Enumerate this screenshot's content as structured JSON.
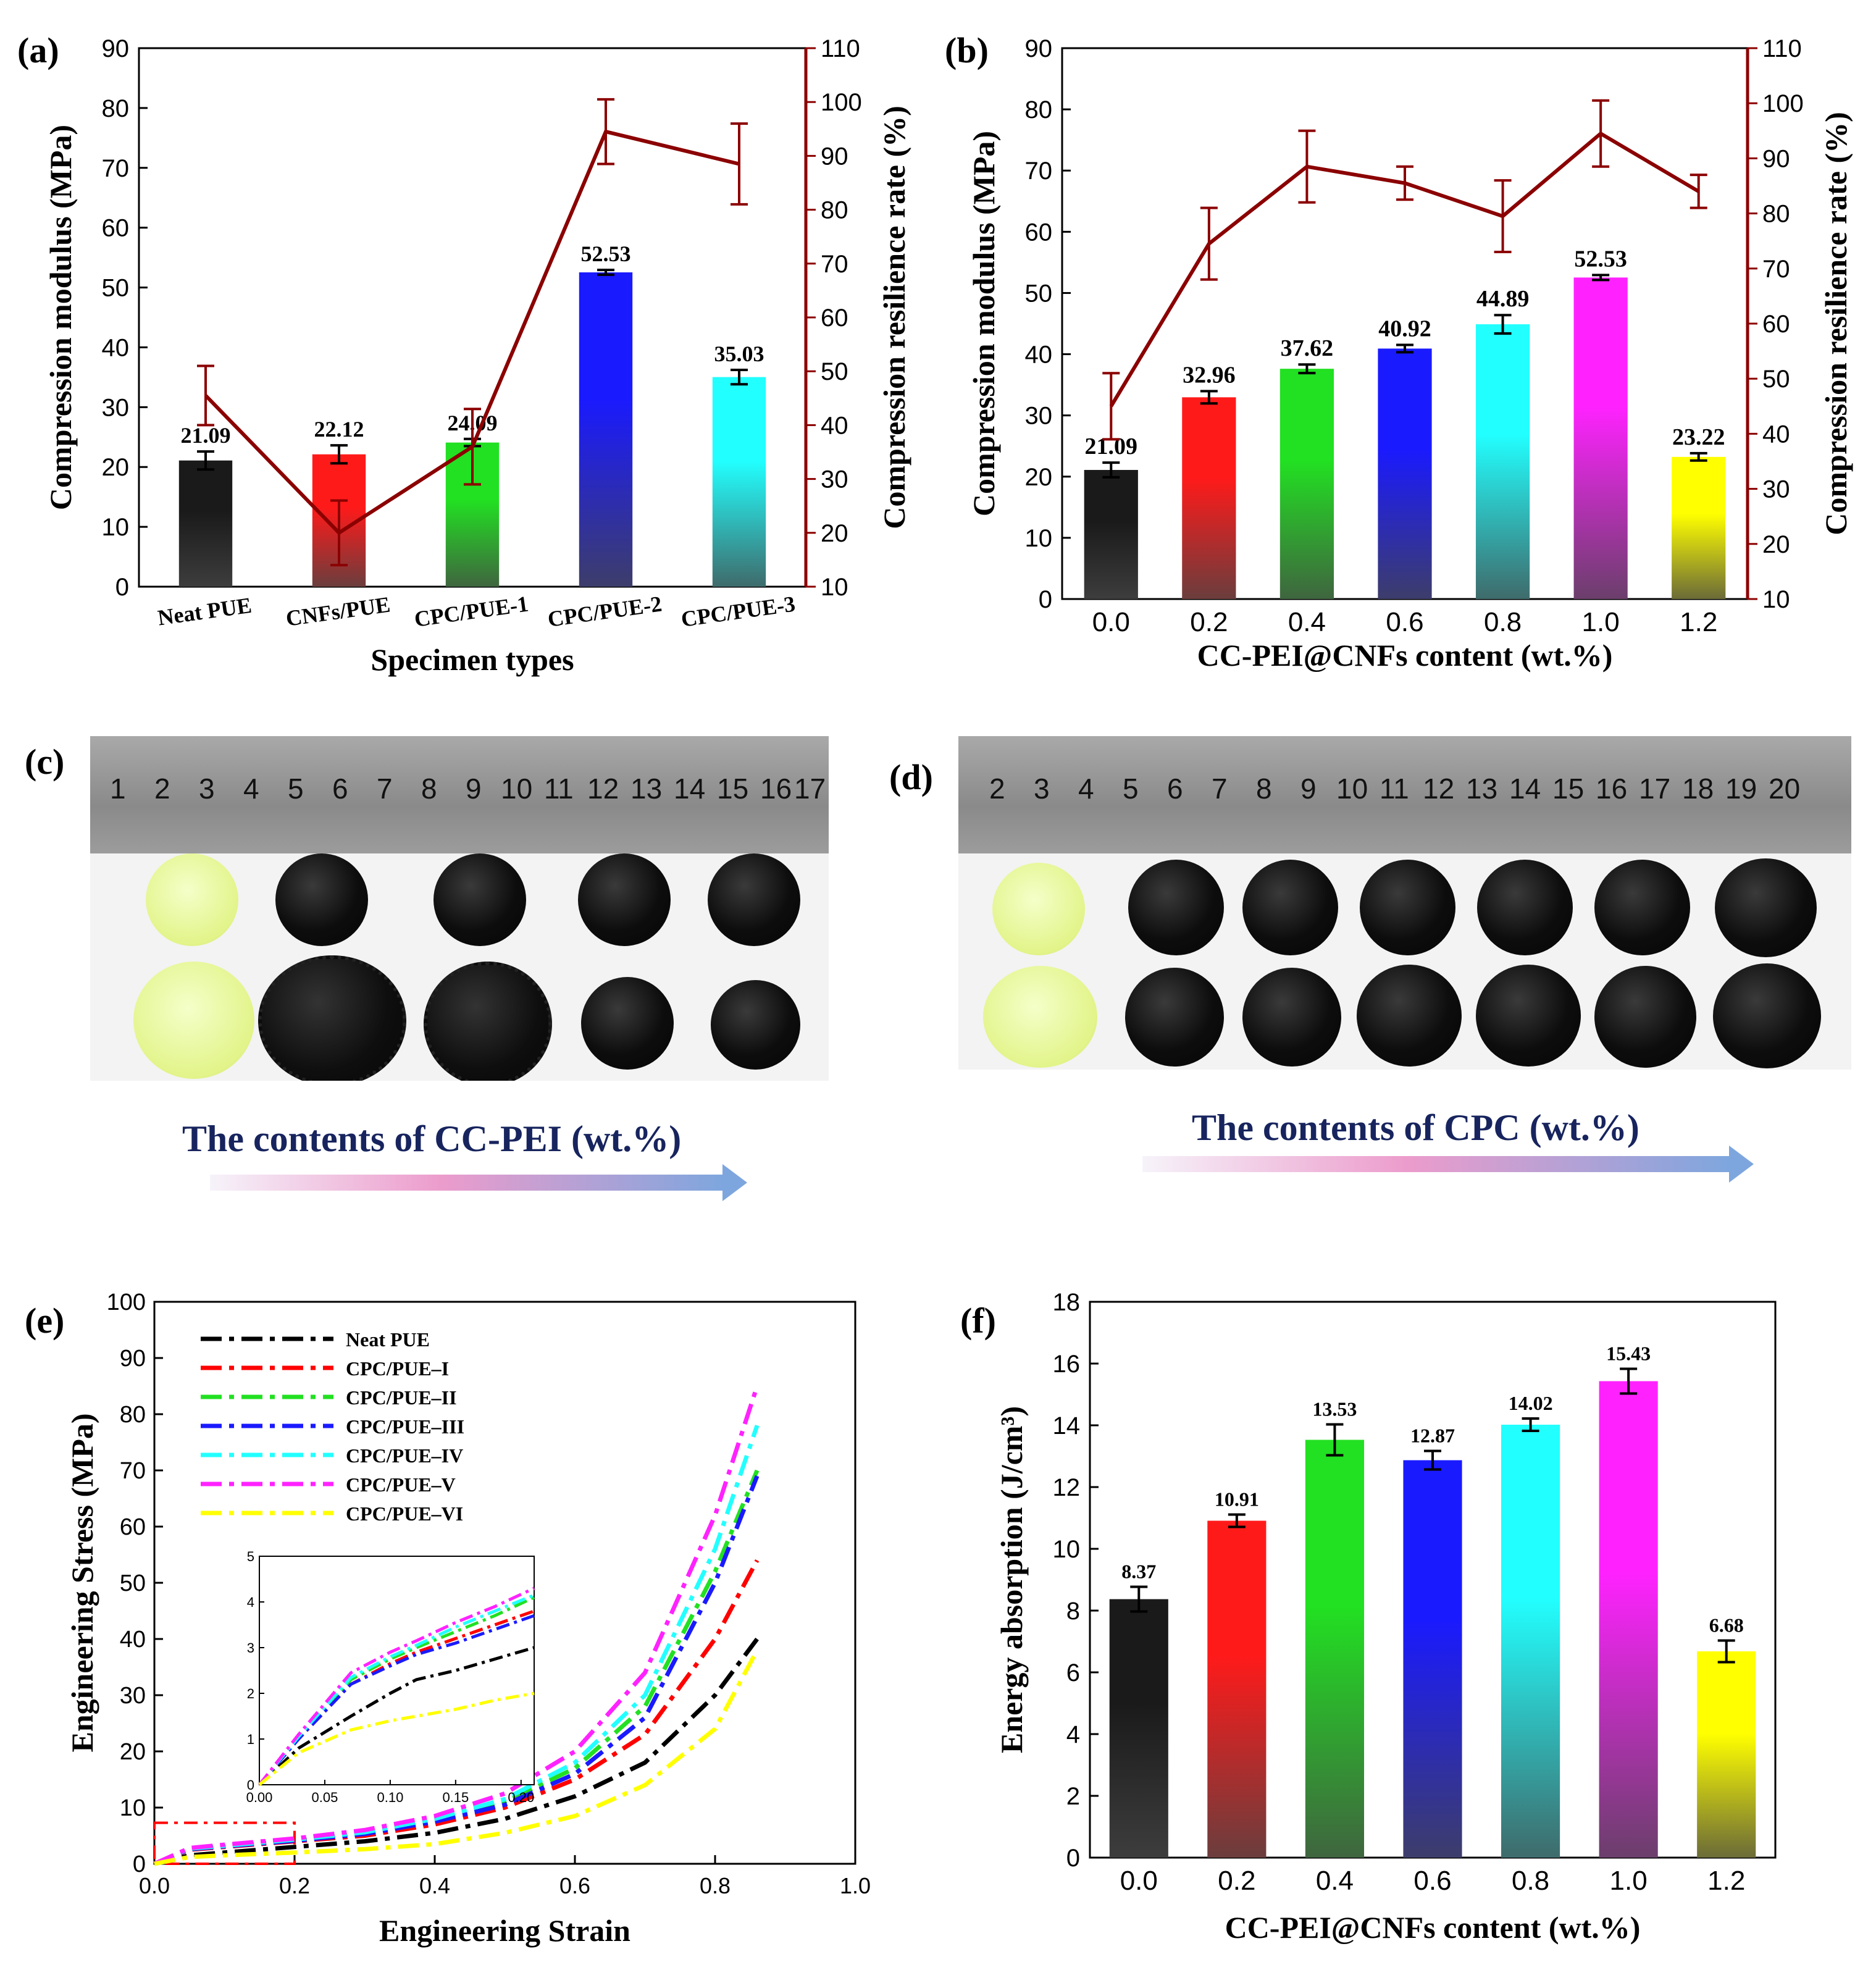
{
  "chart_data": [
    {
      "id": "a",
      "panel_label": "(a)",
      "type": "bar",
      "xlabel": "Specimen types",
      "ylabel": "Compression modulus (MPa)",
      "y2label": "Compression resilience rate (%)",
      "categories": [
        "Neat PUE",
        "CNFs/PUE",
        "CPC/PUE-1",
        "CPC/PUE-2",
        "CPC/PUE-3"
      ],
      "values": [
        21.09,
        22.12,
        24.09,
        52.53,
        35.03
      ],
      "value_labels": [
        "21.09",
        "22.12",
        "24.09",
        "52.53",
        "35.03"
      ],
      "errors": [
        1.5,
        1.5,
        0.6,
        0.4,
        1.2
      ],
      "colors": [
        "#1a1a1a",
        "#ff1a1a",
        "#22e022",
        "#1a1aff",
        "#22ffff"
      ],
      "ylim": [
        0,
        90
      ],
      "yticks": [
        0,
        10,
        20,
        30,
        40,
        50,
        60,
        70,
        80,
        90
      ],
      "y2lim": [
        10,
        110
      ],
      "y2ticks": [
        10,
        20,
        30,
        40,
        50,
        60,
        70,
        80,
        90,
        100,
        110
      ],
      "line_series": {
        "name": "Compression resilience rate",
        "color": "#8b0000",
        "values": [
          45.5,
          20,
          36,
          94.5,
          88.5
        ],
        "errors": [
          5.5,
          6,
          7,
          6,
          7.5
        ]
      }
    },
    {
      "id": "b",
      "panel_label": "(b)",
      "type": "bar",
      "xlabel": "CC-PEI@CNFs content   (wt.%)",
      "ylabel": "Compression modulus (MPa)",
      "y2label": "Compression resilience rate (%)",
      "categories": [
        "0.0",
        "0.2",
        "0.4",
        "0.6",
        "0.8",
        "1.0",
        "1.2"
      ],
      "values": [
        21.09,
        32.96,
        37.62,
        40.92,
        44.89,
        52.53,
        23.22
      ],
      "value_labels": [
        "21.09",
        "32.96",
        "37.62",
        "40.92",
        "44.89",
        "52.53",
        "23.22"
      ],
      "errors": [
        1.2,
        1.0,
        0.7,
        0.6,
        1.5,
        0.4,
        0.6
      ],
      "colors": [
        "#1a1a1a",
        "#ff1a1a",
        "#22e022",
        "#1a1aff",
        "#22ffff",
        "#ff22ff",
        "#ffff00"
      ],
      "ylim": [
        0,
        90
      ],
      "yticks": [
        0,
        10,
        20,
        30,
        40,
        50,
        60,
        70,
        80,
        90
      ],
      "y2lim": [
        10,
        110
      ],
      "y2ticks": [
        10,
        20,
        30,
        40,
        50,
        60,
        70,
        80,
        90,
        100,
        110
      ],
      "line_series": {
        "name": "Compression resilience rate",
        "color": "#8b0000",
        "values": [
          45,
          74.5,
          88.5,
          85.5,
          79.5,
          94.5,
          84
        ],
        "errors": [
          6,
          6.5,
          6.5,
          3,
          6.5,
          6,
          3
        ]
      }
    },
    {
      "id": "e",
      "panel_label": "(e)",
      "type": "line",
      "xlabel": "Engineering Strain",
      "ylabel": "Engineering Stress (MPa)",
      "xlim": [
        0,
        1
      ],
      "xticks": [
        "0.0",
        "0.2",
        "0.4",
        "0.6",
        "0.8",
        "1.0"
      ],
      "ylim": [
        0,
        100
      ],
      "yticks": [
        0,
        10,
        20,
        30,
        40,
        50,
        60,
        70,
        80,
        90,
        100
      ],
      "series": [
        {
          "name": "Neat PUE",
          "color": "#000000",
          "x": [
            0,
            0.05,
            0.1,
            0.2,
            0.3,
            0.4,
            0.5,
            0.6,
            0.7,
            0.8,
            0.86
          ],
          "y": [
            0,
            1.5,
            2,
            3,
            4,
            5.5,
            8,
            12,
            18,
            30,
            40
          ]
        },
        {
          "name": "CPC/PUE–I",
          "color": "#ff0000",
          "x": [
            0,
            0.05,
            0.1,
            0.2,
            0.3,
            0.4,
            0.5,
            0.6,
            0.7,
            0.8,
            0.86
          ],
          "y": [
            0,
            2.5,
            3,
            4,
            5,
            7,
            10,
            15,
            23,
            40,
            54
          ]
        },
        {
          "name": "CPC/PUE–II",
          "color": "#22e022",
          "x": [
            0,
            0.05,
            0.1,
            0.2,
            0.3,
            0.4,
            0.5,
            0.6,
            0.7,
            0.8,
            0.86
          ],
          "y": [
            0,
            2.7,
            3.2,
            4.2,
            5.5,
            7.8,
            11,
            17,
            28,
            52,
            70
          ]
        },
        {
          "name": "CPC/PUE–III",
          "color": "#1a1aff",
          "x": [
            0,
            0.05,
            0.1,
            0.2,
            0.3,
            0.4,
            0.5,
            0.6,
            0.7,
            0.8,
            0.86
          ],
          "y": [
            0,
            2.6,
            3.1,
            4.1,
            5.3,
            7.5,
            10.5,
            16,
            26,
            50,
            69
          ]
        },
        {
          "name": "CPC/PUE–IV",
          "color": "#22ffff",
          "x": [
            0,
            0.05,
            0.1,
            0.2,
            0.3,
            0.4,
            0.5,
            0.6,
            0.7,
            0.8,
            0.86
          ],
          "y": [
            0,
            2.7,
            3.2,
            4.3,
            5.6,
            8,
            11.5,
            18,
            30,
            56,
            78
          ]
        },
        {
          "name": "CPC/PUE–V",
          "color": "#ff22ff",
          "x": [
            0,
            0.05,
            0.1,
            0.2,
            0.3,
            0.4,
            0.5,
            0.6,
            0.7,
            0.8,
            0.86
          ],
          "y": [
            0,
            2.8,
            3.4,
            4.5,
            6,
            8.5,
            12.5,
            20,
            34,
            62,
            85
          ]
        },
        {
          "name": "CPC/PUE–VI",
          "color": "#ffff00",
          "x": [
            0,
            0.05,
            0.1,
            0.2,
            0.3,
            0.4,
            0.5,
            0.6,
            0.7,
            0.8,
            0.86
          ],
          "y": [
            0,
            1.2,
            1.5,
            2,
            2.6,
            3.5,
            5.5,
            8.5,
            14,
            24,
            38
          ]
        }
      ],
      "inset": {
        "xlim": [
          0,
          0.21
        ],
        "xticks": [
          "0.00",
          "0.05",
          "0.10",
          "0.15",
          "0.20"
        ],
        "ylim": [
          0,
          5
        ],
        "yticks": [
          "0",
          "1",
          "2",
          "3",
          "4",
          "5"
        ],
        "series_y": [
          [
            0,
            0.8,
            1.5,
            2.0,
            2.3,
            2.5,
            2.75,
            3.0
          ],
          [
            0,
            1.0,
            2.2,
            2.65,
            2.9,
            3.2,
            3.5,
            3.8
          ],
          [
            0,
            1.0,
            2.3,
            2.75,
            3.0,
            3.35,
            3.7,
            4.1
          ],
          [
            0,
            1.0,
            2.2,
            2.6,
            2.85,
            3.1,
            3.4,
            3.7
          ],
          [
            0,
            1.05,
            2.35,
            2.8,
            3.05,
            3.45,
            3.8,
            4.15
          ],
          [
            0,
            1.1,
            2.45,
            2.9,
            3.15,
            3.55,
            3.9,
            4.3
          ],
          [
            0,
            0.7,
            1.2,
            1.4,
            1.5,
            1.65,
            1.85,
            2.0
          ]
        ],
        "x": [
          0,
          0.03,
          0.07,
          0.1,
          0.12,
          0.15,
          0.18,
          0.21
        ]
      }
    },
    {
      "id": "f",
      "panel_label": "(f)",
      "type": "bar",
      "xlabel": "CC-PEI@CNFs content   (wt.%)",
      "ylabel": "Energy absorption (J/cm³)",
      "categories": [
        "0.0",
        "0.2",
        "0.4",
        "0.6",
        "0.8",
        "1.0",
        "1.2"
      ],
      "values": [
        8.37,
        10.91,
        13.53,
        12.87,
        14.02,
        15.43,
        6.68
      ],
      "value_labels": [
        "8.37",
        "10.91",
        "13.53",
        "12.87",
        "14.02",
        "15.43",
        "6.68"
      ],
      "errors": [
        0.4,
        0.2,
        0.5,
        0.3,
        0.2,
        0.4,
        0.35
      ],
      "colors": [
        "#1a1a1a",
        "#ff1a1a",
        "#22e022",
        "#1a1aff",
        "#22ffff",
        "#ff22ff",
        "#ffff00"
      ],
      "ylim": [
        0,
        18
      ],
      "yticks": [
        0,
        2,
        4,
        6,
        8,
        10,
        12,
        14,
        16,
        18
      ]
    }
  ],
  "photos": {
    "c": {
      "panel_label": "(c)",
      "ruler_numbers": [
        "1",
        "2",
        "3",
        "4",
        "5",
        "6",
        "7",
        "8",
        "9",
        "10",
        "11",
        "12",
        "13",
        "14",
        "15",
        "16",
        "17"
      ],
      "caption": "The contents of CC-PEI (wt.%)"
    },
    "d": {
      "panel_label": "(d)",
      "ruler_numbers": [
        "2",
        "3",
        "4",
        "5",
        "6",
        "7",
        "8",
        "9",
        "10",
        "11",
        "12",
        "13",
        "14",
        "15",
        "16",
        "17",
        "18",
        "19",
        "20"
      ],
      "caption": "The contents of CPC (wt.%)"
    }
  }
}
